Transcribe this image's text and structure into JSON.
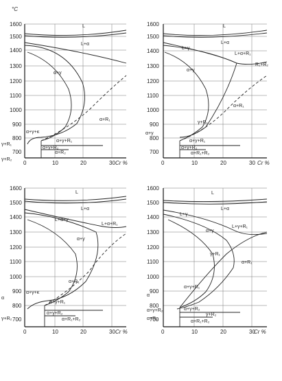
{
  "units": {
    "temp": "°C",
    "cr": "Cr %"
  },
  "panels": [
    {
      "id": "tl",
      "yticks": [
        "1600",
        "1500",
        "1400",
        "1300",
        "1200",
        "1100",
        "1000",
        "900",
        "800",
        "700"
      ],
      "xticks": [
        "0",
        "10",
        "20",
        "30"
      ],
      "labels": [
        "L",
        "L+α",
        "α+γ",
        "α+R₁",
        "α+γ+R₁",
        "α+γ+R₂",
        "α+γ+κ",
        "α+R₂",
        "γ+R₁",
        "γ+R₂",
        "α+γ+R₁+R₂",
        "α+R₁+R₂"
      ]
    },
    {
      "id": "tr",
      "yticks": [
        "1600",
        "1500",
        "1400",
        "1300",
        "1200",
        "1100",
        "1000",
        "900",
        "800",
        "700"
      ],
      "xticks": [
        "0",
        "10",
        "20",
        "30"
      ],
      "labels": [
        "L",
        "L+α",
        "L+α+R₁",
        "L+γ",
        "α+γ",
        "α+R₁",
        "γ+R₁",
        "α+γ+R₁",
        "α+γ+R₂",
        "α+R₁+R₂",
        "R₁+R₂",
        "α+γ"
      ]
    },
    {
      "id": "bl",
      "yticks": [
        "1600",
        "1500",
        "1400",
        "1300",
        "1200",
        "1100",
        "1000",
        "900",
        "800",
        "700"
      ],
      "xticks": [
        "0",
        "10",
        "20",
        "30"
      ],
      "labels": [
        "L",
        "L+α",
        "L+α+γ",
        "L+α+R₁",
        "α+γ",
        "α+R₁",
        "α+γ+R₁",
        "α+γ+R₂",
        "α+γ+κ",
        "α+R₁+R₂",
        "α",
        "γ+R₂"
      ]
    },
    {
      "id": "br",
      "yticks": [
        "1600",
        "1500",
        "1400",
        "1300",
        "1200",
        "1100",
        "1000",
        "900",
        "800",
        "700"
      ],
      "xticks": [
        "0",
        "10",
        "20",
        "30"
      ],
      "labels": [
        "L",
        "L+α",
        "L+γ",
        "L+γ+R₁",
        "α+γ",
        "α+R₁",
        "γ+R₁",
        "α+γ+R₁",
        "α+γ+R₂",
        "α+R₁+R₂",
        "α",
        "α+γ+R₂",
        "α+R₂",
        "γ+R₂"
      ]
    }
  ]
}
